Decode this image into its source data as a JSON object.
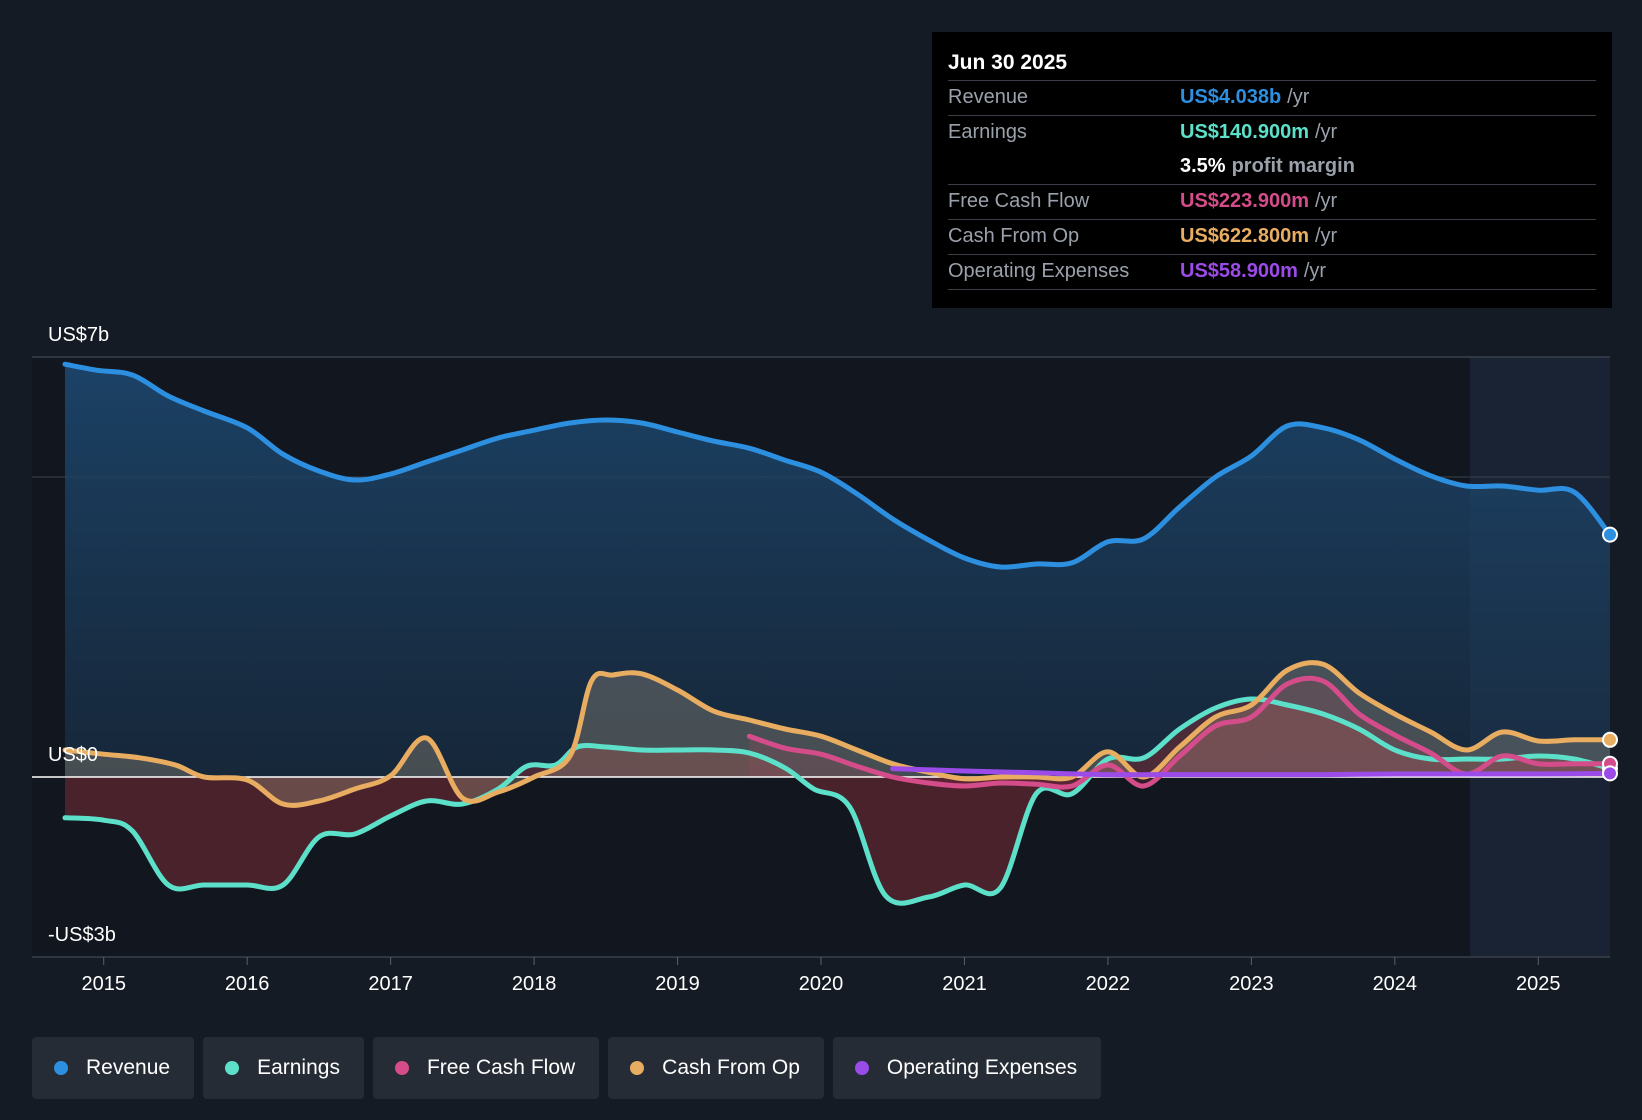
{
  "tooltip": {
    "date": "Jun 30 2025",
    "rows": [
      {
        "name": "Revenue",
        "value": "US$4.038b",
        "unit": "/yr",
        "color": "#2d8fe0"
      },
      {
        "name": "Earnings",
        "value": "US$140.900m",
        "unit": "/yr",
        "color": "#5de0c9"
      },
      {
        "name": "",
        "value": "3.5%",
        "unit": "profit margin",
        "color": "#ffffff"
      },
      {
        "name": "Free Cash Flow",
        "value": "US$223.900m",
        "unit": "/yr",
        "color": "#d44d8a"
      },
      {
        "name": "Cash From Op",
        "value": "US$622.800m",
        "unit": "/yr",
        "color": "#e8ad60"
      },
      {
        "name": "Operating Expenses",
        "value": "US$58.900m",
        "unit": "/yr",
        "color": "#9b4be8"
      }
    ]
  },
  "legend": [
    {
      "label": "Revenue",
      "color": "#2d8fe0"
    },
    {
      "label": "Earnings",
      "color": "#5de0c9"
    },
    {
      "label": "Free Cash Flow",
      "color": "#d44d8a"
    },
    {
      "label": "Cash From Op",
      "color": "#e8ad60"
    },
    {
      "label": "Operating Expenses",
      "color": "#9b4be8"
    }
  ],
  "chart_data": {
    "type": "line",
    "ylim": [
      -3,
      7
    ],
    "y_tick_labels": [
      "US$7b",
      "US$0",
      "-US$3b"
    ],
    "x_tick_labels": [
      "2015",
      "2016",
      "2017",
      "2018",
      "2019",
      "2020",
      "2021",
      "2022",
      "2023",
      "2024",
      "2025"
    ],
    "xlim": [
      2014.5,
      2025.5
    ],
    "forecast_start": 2024.5,
    "grid": true,
    "series": [
      {
        "name": "Revenue",
        "color": "#2d8fe0",
        "fill": true,
        "x": [
          2014.73,
          2014.95,
          2015.2,
          2015.45,
          2015.7,
          2016.0,
          2016.25,
          2016.5,
          2016.75,
          2017.0,
          2017.25,
          2017.5,
          2017.75,
          2018.0,
          2018.25,
          2018.5,
          2018.75,
          2019.0,
          2019.25,
          2019.5,
          2019.75,
          2020.0,
          2020.25,
          2020.5,
          2020.75,
          2021.0,
          2021.25,
          2021.5,
          2021.75,
          2022.0,
          2022.25,
          2022.5,
          2022.75,
          2023.0,
          2023.25,
          2023.5,
          2023.75,
          2024.0,
          2024.25,
          2024.5,
          2024.75,
          2025.0,
          2025.25,
          2025.5
        ],
        "y": [
          6.88,
          6.78,
          6.7,
          6.35,
          6.1,
          5.82,
          5.38,
          5.1,
          4.95,
          5.05,
          5.25,
          5.45,
          5.65,
          5.78,
          5.9,
          5.95,
          5.9,
          5.75,
          5.6,
          5.48,
          5.28,
          5.08,
          4.72,
          4.3,
          3.95,
          3.65,
          3.5,
          3.55,
          3.57,
          3.92,
          3.97,
          4.5,
          5.0,
          5.35,
          5.85,
          5.82,
          5.62,
          5.3,
          5.02,
          4.85,
          4.85,
          4.78,
          4.75,
          4.04
        ]
      },
      {
        "name": "Earnings",
        "color": "#5de0c9",
        "fill": true,
        "x": [
          2014.73,
          2015.0,
          2015.2,
          2015.45,
          2015.7,
          2016.0,
          2016.25,
          2016.5,
          2016.75,
          2017.0,
          2017.25,
          2017.5,
          2017.75,
          2017.95,
          2018.15,
          2018.3,
          2018.5,
          2018.75,
          2019.0,
          2019.25,
          2019.5,
          2019.75,
          2019.95,
          2020.2,
          2020.45,
          2020.75,
          2021.0,
          2021.25,
          2021.5,
          2021.75,
          2022.0,
          2022.25,
          2022.5,
          2022.75,
          2023.0,
          2023.25,
          2023.5,
          2023.75,
          2024.0,
          2024.25,
          2024.5,
          2024.75,
          2025.0,
          2025.25,
          2025.5
        ],
        "y": [
          -0.68,
          -0.72,
          -0.9,
          -1.8,
          -1.8,
          -1.8,
          -1.8,
          -1.0,
          -0.95,
          -0.65,
          -0.4,
          -0.45,
          -0.2,
          0.18,
          0.2,
          0.5,
          0.5,
          0.45,
          0.45,
          0.45,
          0.4,
          0.15,
          -0.2,
          -0.5,
          -1.98,
          -2.0,
          -1.8,
          -1.85,
          -0.28,
          -0.28,
          0.3,
          0.32,
          0.8,
          1.15,
          1.3,
          1.2,
          1.05,
          0.8,
          0.45,
          0.3,
          0.3,
          0.3,
          0.35,
          0.3,
          0.14
        ]
      },
      {
        "name": "Free Cash Flow",
        "color": "#d44d8a",
        "fill": true,
        "x": [
          2019.5,
          2019.75,
          2020.0,
          2020.25,
          2020.5,
          2020.75,
          2021.0,
          2021.25,
          2021.5,
          2021.75,
          2022.0,
          2022.25,
          2022.5,
          2022.75,
          2023.0,
          2023.25,
          2023.5,
          2023.75,
          2024.0,
          2024.25,
          2024.5,
          2024.75,
          2025.0,
          2025.25,
          2025.5
        ],
        "y": [
          0.68,
          0.48,
          0.38,
          0.18,
          0.0,
          -0.1,
          -0.15,
          -0.1,
          -0.12,
          -0.15,
          0.2,
          -0.15,
          0.35,
          0.85,
          1.0,
          1.55,
          1.6,
          1.05,
          0.7,
          0.4,
          0.05,
          0.35,
          0.22,
          0.22,
          0.22
        ]
      },
      {
        "name": "Cash From Op",
        "color": "#e8ad60",
        "fill": true,
        "x": [
          2014.73,
          2015.0,
          2015.25,
          2015.5,
          2015.7,
          2016.0,
          2016.25,
          2016.5,
          2016.75,
          2017.0,
          2017.25,
          2017.5,
          2017.75,
          2018.0,
          2018.25,
          2018.4,
          2018.55,
          2018.75,
          2019.0,
          2019.25,
          2019.5,
          2019.75,
          2020.0,
          2020.25,
          2020.5,
          2020.75,
          2021.0,
          2021.25,
          2021.5,
          2021.75,
          2022.0,
          2022.25,
          2022.5,
          2022.75,
          2023.0,
          2023.25,
          2023.5,
          2023.75,
          2024.0,
          2024.25,
          2024.5,
          2024.75,
          2025.0,
          2025.25,
          2025.5
        ],
        "y": [
          0.45,
          0.38,
          0.32,
          0.2,
          0.0,
          -0.05,
          -0.45,
          -0.4,
          -0.2,
          0.02,
          0.65,
          -0.35,
          -0.25,
          0.0,
          0.35,
          1.6,
          1.7,
          1.72,
          1.45,
          1.1,
          0.95,
          0.8,
          0.68,
          0.45,
          0.22,
          0.08,
          -0.03,
          0.0,
          0.0,
          0.0,
          0.42,
          0.0,
          0.5,
          1.0,
          1.2,
          1.78,
          1.88,
          1.4,
          1.05,
          0.75,
          0.45,
          0.75,
          0.6,
          0.62,
          0.62
        ]
      },
      {
        "name": "Operating Expenses",
        "color": "#9b4be8",
        "fill": false,
        "x": [
          2020.5,
          2021.0,
          2021.5,
          2022.0,
          2022.5,
          2023.0,
          2023.5,
          2024.0,
          2024.5,
          2025.0,
          2025.5
        ],
        "y": [
          0.14,
          0.1,
          0.07,
          0.04,
          0.04,
          0.04,
          0.04,
          0.05,
          0.05,
          0.05,
          0.06
        ]
      }
    ]
  }
}
